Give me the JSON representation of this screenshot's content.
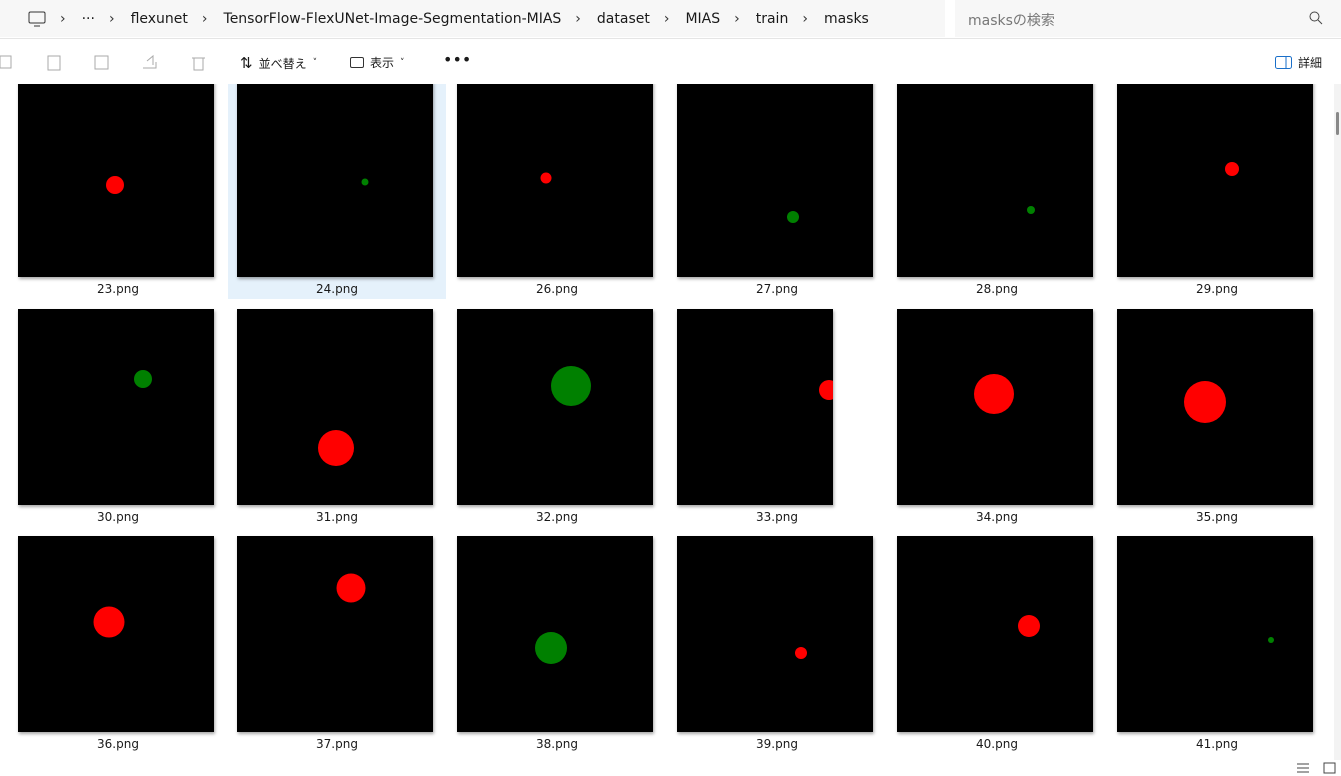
{
  "address_bar": {
    "breadcrumb": [
      "flexunet",
      "TensorFlow-FlexUNet-Image-Segmentation-MIAS",
      "dataset",
      "MIAS",
      "train",
      "masks"
    ],
    "search_placeholder": "masksの検索"
  },
  "toolbar": {
    "sort": "並べ替え",
    "view": "表示",
    "details": "詳細"
  },
  "files": [
    "23.png",
    "24.png",
    "26.png",
    "27.png",
    "28.png",
    "29.png",
    "30.png",
    "31.png",
    "32.png",
    "33.png",
    "34.png",
    "35.png",
    "36.png",
    "37.png",
    "38.png",
    "39.png",
    "40.png",
    "41.png"
  ],
  "selected_file": "24.png"
}
